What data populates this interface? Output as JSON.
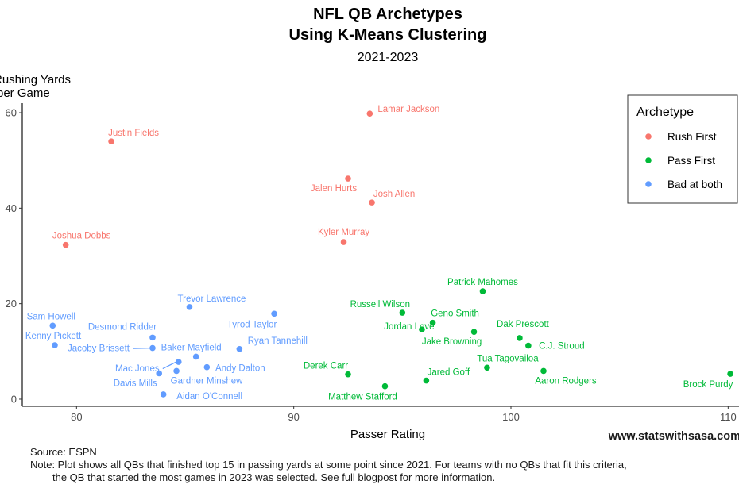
{
  "chart_data": {
    "type": "scatter",
    "title_line1": "NFL QB Archetypes",
    "title_line2": "Using K-Means Clustering",
    "subtitle": "2021-2023",
    "xlabel": "Passer Rating",
    "ylabel_line1": "Rushing Yards",
    "ylabel_line2": "per Game",
    "xlim": [
      77.5,
      110.5
    ],
    "ylim": [
      -1.5,
      62
    ],
    "x_ticks": [
      80,
      90,
      100,
      110
    ],
    "y_ticks": [
      0,
      20,
      40,
      60
    ],
    "grid": false,
    "legend": {
      "title": "Archetype",
      "position": "top-right",
      "entries": [
        {
          "name": "Rush First",
          "color": "#F8766D"
        },
        {
          "name": "Pass First",
          "color": "#00BA38"
        },
        {
          "name": "Bad at both",
          "color": "#619CFF"
        }
      ]
    },
    "points": [
      {
        "name": "Lamar Jackson",
        "x": 93.5,
        "y": 59.8,
        "group": "Rush First"
      },
      {
        "name": "Justin Fields",
        "x": 81.6,
        "y": 54.0,
        "group": "Rush First"
      },
      {
        "name": "Jalen Hurts",
        "x": 92.5,
        "y": 46.2,
        "group": "Rush First"
      },
      {
        "name": "Josh Allen",
        "x": 93.6,
        "y": 41.2,
        "group": "Rush First"
      },
      {
        "name": "Joshua Dobbs",
        "x": 79.5,
        "y": 32.3,
        "group": "Rush First"
      },
      {
        "name": "Kyler Murray",
        "x": 92.3,
        "y": 32.9,
        "group": "Rush First"
      },
      {
        "name": "Patrick Mahomes",
        "x": 98.7,
        "y": 22.6,
        "group": "Pass First"
      },
      {
        "name": "Russell Wilson",
        "x": 95.0,
        "y": 18.1,
        "group": "Pass First"
      },
      {
        "name": "Geno Smith",
        "x": 96.4,
        "y": 16.0,
        "group": "Pass First"
      },
      {
        "name": "Jordan Love",
        "x": 95.9,
        "y": 14.6,
        "group": "Pass First"
      },
      {
        "name": "Jake Browning",
        "x": 98.3,
        "y": 14.1,
        "group": "Pass First"
      },
      {
        "name": "Dak Prescott",
        "x": 100.4,
        "y": 12.8,
        "group": "Pass First"
      },
      {
        "name": "C.J. Stroud",
        "x": 100.8,
        "y": 11.2,
        "group": "Pass First"
      },
      {
        "name": "Tua Tagovailoa",
        "x": 98.9,
        "y": 6.6,
        "group": "Pass First"
      },
      {
        "name": "Derek Carr",
        "x": 92.5,
        "y": 5.2,
        "group": "Pass First"
      },
      {
        "name": "Aaron Rodgers",
        "x": 101.5,
        "y": 5.9,
        "group": "Pass First"
      },
      {
        "name": "Jared Goff",
        "x": 96.1,
        "y": 3.9,
        "group": "Pass First"
      },
      {
        "name": "Matthew Stafford",
        "x": 94.2,
        "y": 2.7,
        "group": "Pass First"
      },
      {
        "name": "Brock Purdy",
        "x": 110.1,
        "y": 5.3,
        "group": "Pass First"
      },
      {
        "name": "Trevor Lawrence",
        "x": 85.2,
        "y": 19.3,
        "group": "Bad at both"
      },
      {
        "name": "Tyrod Taylor",
        "x": 89.1,
        "y": 17.9,
        "group": "Bad at both"
      },
      {
        "name": "Sam Howell",
        "x": 78.9,
        "y": 15.4,
        "group": "Bad at both"
      },
      {
        "name": "Desmond Ridder",
        "x": 83.5,
        "y": 12.9,
        "group": "Bad at both"
      },
      {
        "name": "Kenny Pickett",
        "x": 79.0,
        "y": 11.3,
        "group": "Bad at both"
      },
      {
        "name": "Jacoby Brissett",
        "x": 83.5,
        "y": 10.7,
        "group": "Bad at both"
      },
      {
        "name": "Ryan Tannehill",
        "x": 87.5,
        "y": 10.5,
        "group": "Bad at both"
      },
      {
        "name": "Baker Mayfield",
        "x": 85.5,
        "y": 8.9,
        "group": "Bad at both"
      },
      {
        "name": "Mac Jones",
        "x": 84.7,
        "y": 7.8,
        "group": "Bad at both"
      },
      {
        "name": "Andy Dalton",
        "x": 86.0,
        "y": 6.7,
        "group": "Bad at both"
      },
      {
        "name": "Gardner Minshew",
        "x": 84.6,
        "y": 5.9,
        "group": "Bad at both"
      },
      {
        "name": "Davis Mills",
        "x": 83.8,
        "y": 5.4,
        "group": "Bad at both"
      },
      {
        "name": "Aidan O'Connell",
        "x": 84.0,
        "y": 1.0,
        "group": "Bad at both"
      }
    ]
  },
  "caption": {
    "source": "Source: ESPN",
    "note_line1": "Note: Plot shows all QBs that finished top 15 in passing yards at some point since 2021. For teams with no QBs that fit this criteria,",
    "note_line2": "the QB that started the most games in 2023 was selected. See full blogpost for more information."
  },
  "watermark": "www.statswithsasa.com"
}
